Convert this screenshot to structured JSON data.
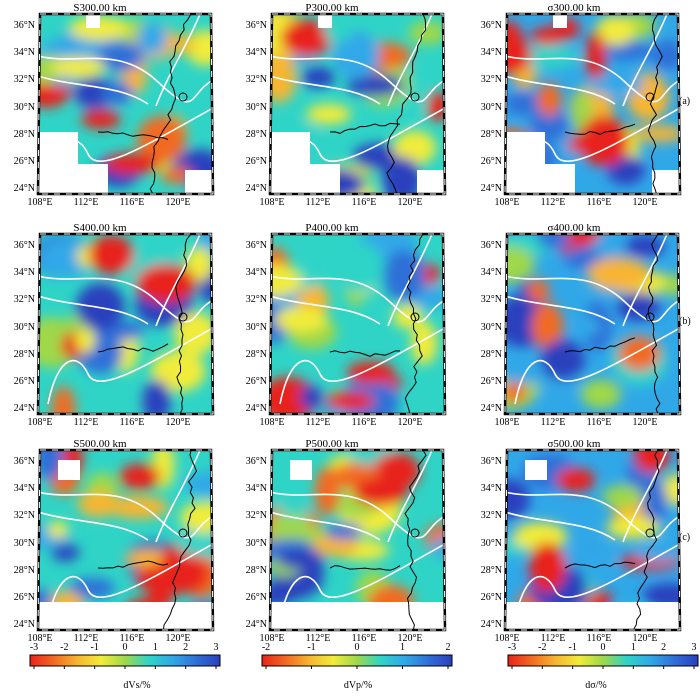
{
  "panels": [
    {
      "title": "S300.00 km",
      "palette": "red-blue",
      "row": 0,
      "col": 0
    },
    {
      "title": "P300.00 km",
      "palette": "red-blue",
      "row": 0,
      "col": 1
    },
    {
      "title": "σ300.00 km",
      "palette": "blue-red",
      "row": 0,
      "col": 2
    },
    {
      "title": "S400.00 km",
      "palette": "red-blue",
      "row": 1,
      "col": 0
    },
    {
      "title": "P400.00 km",
      "palette": "red-blue",
      "row": 1,
      "col": 1
    },
    {
      "title": "σ400.00 km",
      "palette": "blue-red",
      "row": 1,
      "col": 2
    },
    {
      "title": "S500.00 km",
      "palette": "red-blue",
      "row": 2,
      "col": 0
    },
    {
      "title": "P500.00 km",
      "palette": "red-blue",
      "row": 2,
      "col": 1
    },
    {
      "title": "σ500.00 km",
      "palette": "blue-red",
      "row": 2,
      "col": 2
    }
  ],
  "lat_labels": [
    "36°N",
    "34°N",
    "32°N",
    "30°N",
    "28°N",
    "26°N",
    "24°N"
  ],
  "lon_labels": [
    "108°E",
    "112°E",
    "116°E",
    "120°E"
  ],
  "row_labels": [
    "(a)",
    "(b)",
    "(c)"
  ],
  "colorbars": [
    {
      "label": "dVs/%",
      "ticks": [
        "-3",
        "-2",
        "-1",
        "0",
        "1",
        "2",
        "3"
      ]
    },
    {
      "label": "dVp/%",
      "ticks": [
        "-2",
        "-1",
        "0",
        "1",
        "2"
      ]
    },
    {
      "label": "dσ/%",
      "ticks": [
        "-3",
        "-2",
        "-1",
        "0",
        "1",
        "2",
        "3"
      ]
    }
  ],
  "palette_stops": [
    "#e8231c",
    "#f26a21",
    "#f7b531",
    "#f1ec3a",
    "#9fd84a",
    "#2fd4c7",
    "#30a8e8",
    "#2f6fd8",
    "#2a3fbd"
  ]
}
